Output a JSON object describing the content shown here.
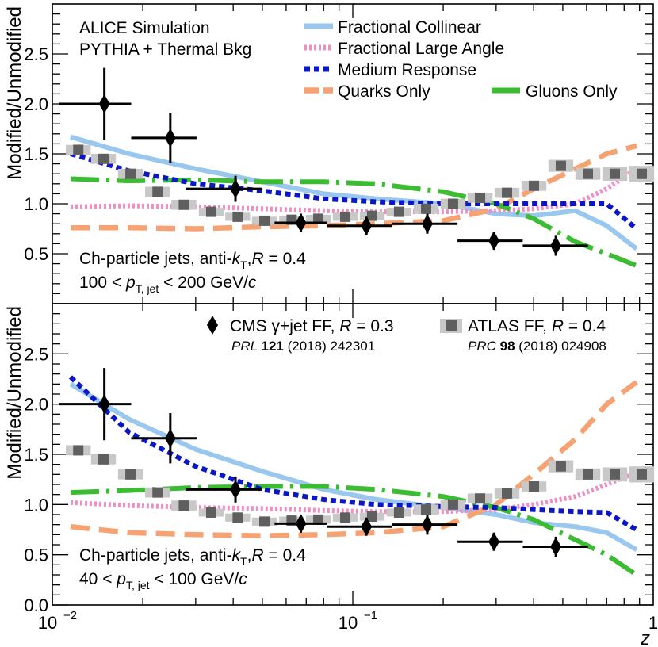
{
  "figure": {
    "xlabel": "z",
    "ylabel": "Modified/Unmodified",
    "x_tick_labels": [
      "10",
      "−2",
      "10",
      "−1",
      "1"
    ],
    "y_tick_labels": [
      "0.0",
      "0.5",
      "1.0",
      "1.5",
      "2.0",
      "2.5"
    ],
    "colors": {
      "collinear": "#99c7ee",
      "large_angle": "#f08ec4",
      "medium": "#0a16c8",
      "quarks": "#f7a272",
      "gluons": "#3cbc32",
      "cms": "#000000",
      "atlas_marker": "#5f5f5f",
      "atlas_box": "#c8c8c8"
    }
  },
  "header": {
    "line1": "ALICE Simulation",
    "line2": "PYTHIA + Thermal Bkg"
  },
  "legend_models": [
    {
      "key": "collinear",
      "label": "Fractional Collinear"
    },
    {
      "key": "large_angle",
      "label": "Fractional Large Angle"
    },
    {
      "key": "medium",
      "label": "Medium Response"
    },
    {
      "key": "quarks",
      "label": "Quarks Only"
    },
    {
      "key": "gluons",
      "label": "Gluons Only"
    }
  ],
  "legend_data": {
    "cms_label": "CMS γ+jet FF, R = 0.3",
    "cms_ref_journal": "PRL",
    "cms_ref_volume": "121",
    "cms_ref_rest": "(2018) 242301",
    "atlas_label": "ATLAS FF, R = 0.4",
    "atlas_ref_journal": "PRC",
    "atlas_ref_volume": "98",
    "atlas_ref_rest": "(2018) 024908"
  },
  "chart_data": [
    {
      "type": "line",
      "panel": "top",
      "annotation_line1": "Ch-particle jets, anti-kT, R = 0.4",
      "annotation_line2": "100 < pT, jet < 200 GeV/c",
      "xlim": [
        0.01,
        1.0
      ],
      "xscale": "log",
      "ylim": [
        0.0,
        3.0
      ],
      "series": [
        {
          "name": "Fractional Collinear",
          "key": "collinear",
          "x": [
            0.0115,
            0.018,
            0.03,
            0.05,
            0.08,
            0.12,
            0.2,
            0.3,
            0.4,
            0.55,
            0.7,
            0.88
          ],
          "y": [
            1.67,
            1.5,
            1.35,
            1.22,
            1.1,
            1.05,
            1.0,
            0.9,
            0.88,
            0.93,
            0.78,
            0.55
          ]
        },
        {
          "name": "Fractional Large Angle",
          "key": "large_angle",
          "x": [
            0.0115,
            0.018,
            0.03,
            0.05,
            0.08,
            0.12,
            0.2,
            0.3,
            0.4,
            0.55,
            0.7,
            0.88
          ],
          "y": [
            0.97,
            0.98,
            0.97,
            0.95,
            0.93,
            0.92,
            0.92,
            0.93,
            0.95,
            1.0,
            1.15,
            1.35
          ]
        },
        {
          "name": "Medium Response",
          "key": "medium",
          "x": [
            0.0115,
            0.018,
            0.03,
            0.05,
            0.08,
            0.12,
            0.2,
            0.3,
            0.4,
            0.55,
            0.7,
            0.88
          ],
          "y": [
            1.5,
            1.33,
            1.2,
            1.13,
            1.05,
            1.02,
            1.0,
            1.0,
            1.0,
            1.0,
            1.0,
            0.75
          ]
        },
        {
          "name": "Quarks Only",
          "key": "quarks",
          "x": [
            0.0115,
            0.018,
            0.03,
            0.05,
            0.08,
            0.12,
            0.2,
            0.3,
            0.4,
            0.55,
            0.7,
            0.88
          ],
          "y": [
            0.76,
            0.76,
            0.75,
            0.77,
            0.78,
            0.8,
            0.83,
            0.95,
            1.15,
            1.35,
            1.5,
            1.58
          ]
        },
        {
          "name": "Gluons Only",
          "key": "gluons",
          "x": [
            0.0115,
            0.018,
            0.03,
            0.05,
            0.08,
            0.12,
            0.2,
            0.3,
            0.4,
            0.55,
            0.7,
            0.88
          ],
          "y": [
            1.25,
            1.23,
            1.24,
            1.22,
            1.22,
            1.2,
            1.12,
            1.0,
            0.85,
            0.62,
            0.5,
            0.38
          ]
        }
      ],
      "cms": {
        "label": "CMS γ+jet FF, R = 0.3",
        "x": [
          0.0149,
          0.0247,
          0.0407,
          0.0672,
          0.111,
          0.177,
          0.295,
          0.474
        ],
        "y": [
          2.0,
          1.66,
          1.15,
          0.81,
          0.78,
          0.8,
          0.63,
          0.58
        ],
        "xlo": [
          0.0105,
          0.0183,
          0.0278,
          0.0549,
          0.0821,
          0.1353,
          0.2231,
          0.3679
        ],
        "xhi": [
          0.0183,
          0.0302,
          0.0498,
          0.0821,
          0.1353,
          0.2231,
          0.3679,
          0.6065
        ],
        "yerr": [
          0.36,
          0.25,
          0.13,
          0.09,
          0.09,
          0.1,
          0.09,
          0.1
        ]
      },
      "atlas": {
        "label": "ATLAS FF, R = 0.4",
        "x": [
          0.0122,
          0.0148,
          0.0182,
          0.0224,
          0.0274,
          0.0338,
          0.0414,
          0.0508,
          0.0626,
          0.0768,
          0.0944,
          0.116,
          0.1426,
          0.1754,
          0.2156,
          0.2652,
          0.326,
          0.4008,
          0.4926,
          0.6058,
          0.7448,
          0.9156
        ],
        "y": [
          1.54,
          1.45,
          1.3,
          1.12,
          0.99,
          0.92,
          0.87,
          0.83,
          0.84,
          0.85,
          0.87,
          0.88,
          0.92,
          0.95,
          1.0,
          1.06,
          1.11,
          1.18,
          1.38,
          1.3,
          1.3,
          1.3
        ],
        "sys": [
          0.05,
          0.05,
          0.05,
          0.05,
          0.05,
          0.04,
          0.04,
          0.04,
          0.04,
          0.04,
          0.04,
          0.04,
          0.04,
          0.05,
          0.05,
          0.05,
          0.05,
          0.05,
          0.06,
          0.06,
          0.07,
          0.08
        ]
      }
    },
    {
      "type": "line",
      "panel": "bottom",
      "annotation_line1": "Ch-particle jets, anti-kT, R = 0.4",
      "annotation_line2": "40 < pT, jet < 100 GeV/c",
      "xlim": [
        0.01,
        1.0
      ],
      "xscale": "log",
      "ylim": [
        0.0,
        3.0
      ],
      "series": [
        {
          "name": "Fractional Collinear",
          "key": "collinear",
          "x": [
            0.0115,
            0.018,
            0.03,
            0.05,
            0.08,
            0.12,
            0.2,
            0.3,
            0.4,
            0.55,
            0.7,
            0.88
          ],
          "y": [
            2.2,
            1.85,
            1.55,
            1.33,
            1.15,
            1.05,
            0.97,
            0.9,
            0.82,
            0.78,
            0.72,
            0.55
          ]
        },
        {
          "name": "Fractional Large Angle",
          "key": "large_angle",
          "x": [
            0.0115,
            0.018,
            0.03,
            0.05,
            0.08,
            0.12,
            0.2,
            0.3,
            0.4,
            0.55,
            0.7,
            0.88
          ],
          "y": [
            1.02,
            0.99,
            0.97,
            0.96,
            0.94,
            0.93,
            0.93,
            0.95,
            1.0,
            1.08,
            1.2,
            1.32
          ]
        },
        {
          "name": "Medium Response",
          "key": "medium",
          "x": [
            0.0115,
            0.018,
            0.03,
            0.05,
            0.08,
            0.12,
            0.2,
            0.3,
            0.4,
            0.55,
            0.7,
            0.88
          ],
          "y": [
            2.27,
            1.72,
            1.38,
            1.15,
            1.05,
            1.0,
            0.98,
            0.97,
            0.95,
            0.93,
            0.92,
            0.75
          ]
        },
        {
          "name": "Quarks Only",
          "key": "quarks",
          "x": [
            0.0115,
            0.018,
            0.03,
            0.05,
            0.08,
            0.12,
            0.2,
            0.3,
            0.4,
            0.55,
            0.7,
            0.88
          ],
          "y": [
            0.78,
            0.72,
            0.7,
            0.69,
            0.7,
            0.72,
            0.78,
            1.0,
            1.3,
            1.65,
            2.0,
            2.22
          ]
        },
        {
          "name": "Gluons Only",
          "key": "gluons",
          "x": [
            0.0115,
            0.018,
            0.03,
            0.05,
            0.08,
            0.12,
            0.2,
            0.3,
            0.4,
            0.55,
            0.7,
            0.88
          ],
          "y": [
            1.12,
            1.14,
            1.17,
            1.18,
            1.18,
            1.15,
            1.08,
            0.97,
            0.85,
            0.65,
            0.5,
            0.3
          ]
        }
      ],
      "cms": {
        "label": "CMS γ+jet FF, R = 0.3",
        "x": [
          0.0149,
          0.0247,
          0.0407,
          0.0672,
          0.111,
          0.177,
          0.295,
          0.474
        ],
        "y": [
          2.0,
          1.66,
          1.15,
          0.81,
          0.78,
          0.8,
          0.63,
          0.58
        ],
        "xlo": [
          0.0105,
          0.0183,
          0.0278,
          0.0549,
          0.0821,
          0.1353,
          0.2231,
          0.3679
        ],
        "xhi": [
          0.0183,
          0.0302,
          0.0498,
          0.0821,
          0.1353,
          0.2231,
          0.3679,
          0.6065
        ],
        "yerr": [
          0.36,
          0.25,
          0.13,
          0.09,
          0.09,
          0.1,
          0.09,
          0.1
        ]
      },
      "atlas": {
        "label": "ATLAS FF, R = 0.4",
        "x": [
          0.0122,
          0.0148,
          0.0182,
          0.0224,
          0.0274,
          0.0338,
          0.0414,
          0.0508,
          0.0626,
          0.0768,
          0.0944,
          0.116,
          0.1426,
          0.1754,
          0.2156,
          0.2652,
          0.326,
          0.4008,
          0.4926,
          0.6058,
          0.7448,
          0.9156
        ],
        "y": [
          1.54,
          1.45,
          1.3,
          1.12,
          0.99,
          0.92,
          0.87,
          0.83,
          0.84,
          0.85,
          0.87,
          0.88,
          0.92,
          0.95,
          1.0,
          1.06,
          1.11,
          1.18,
          1.38,
          1.3,
          1.3,
          1.3
        ],
        "sys": [
          0.05,
          0.05,
          0.05,
          0.05,
          0.05,
          0.04,
          0.04,
          0.04,
          0.04,
          0.04,
          0.04,
          0.04,
          0.04,
          0.05,
          0.05,
          0.05,
          0.05,
          0.05,
          0.06,
          0.06,
          0.07,
          0.08
        ]
      }
    }
  ]
}
